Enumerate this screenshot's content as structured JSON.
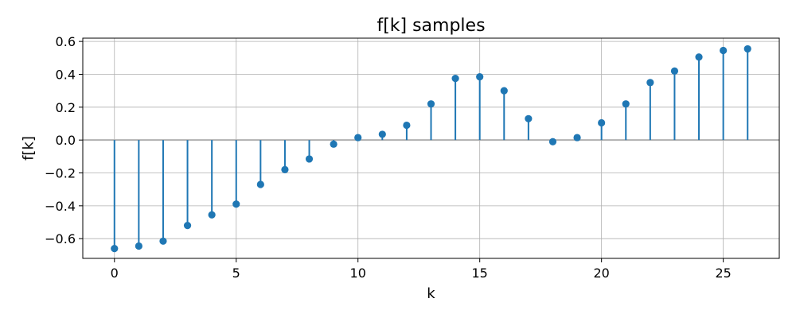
{
  "chart_data": {
    "type": "stem",
    "title": "f[k] samples",
    "xlabel": "k",
    "ylabel": "f[k]",
    "xlim": [
      -1.3,
      27.3
    ],
    "ylim": [
      -0.72,
      0.62
    ],
    "xticks": [
      0,
      5,
      10,
      15,
      20,
      25
    ],
    "yticks": [
      -0.6,
      -0.4,
      -0.2,
      0.0,
      0.2,
      0.4,
      0.6
    ],
    "xtick_labels": [
      "0",
      "5",
      "10",
      "15",
      "20",
      "25"
    ],
    "ytick_labels": [
      "−0.6",
      "−0.4",
      "−0.2",
      "0.0",
      "0.2",
      "0.4",
      "0.6"
    ],
    "grid": true,
    "baseline": 0.0,
    "colors": {
      "stem": "#1f77b4",
      "baseline": "#b0b0b0"
    },
    "x": [
      0,
      1,
      2,
      3,
      4,
      5,
      6,
      7,
      8,
      9,
      10,
      11,
      12,
      13,
      14,
      15,
      16,
      17,
      18,
      19,
      20,
      21,
      22,
      23,
      24,
      25,
      26
    ],
    "values": [
      -0.66,
      -0.645,
      -0.615,
      -0.52,
      -0.455,
      -0.39,
      -0.27,
      -0.18,
      -0.115,
      -0.025,
      0.015,
      0.035,
      0.09,
      0.22,
      0.375,
      0.385,
      0.3,
      0.13,
      -0.01,
      0.015,
      0.105,
      0.22,
      0.35,
      0.42,
      0.505,
      0.545,
      0.555
    ]
  }
}
